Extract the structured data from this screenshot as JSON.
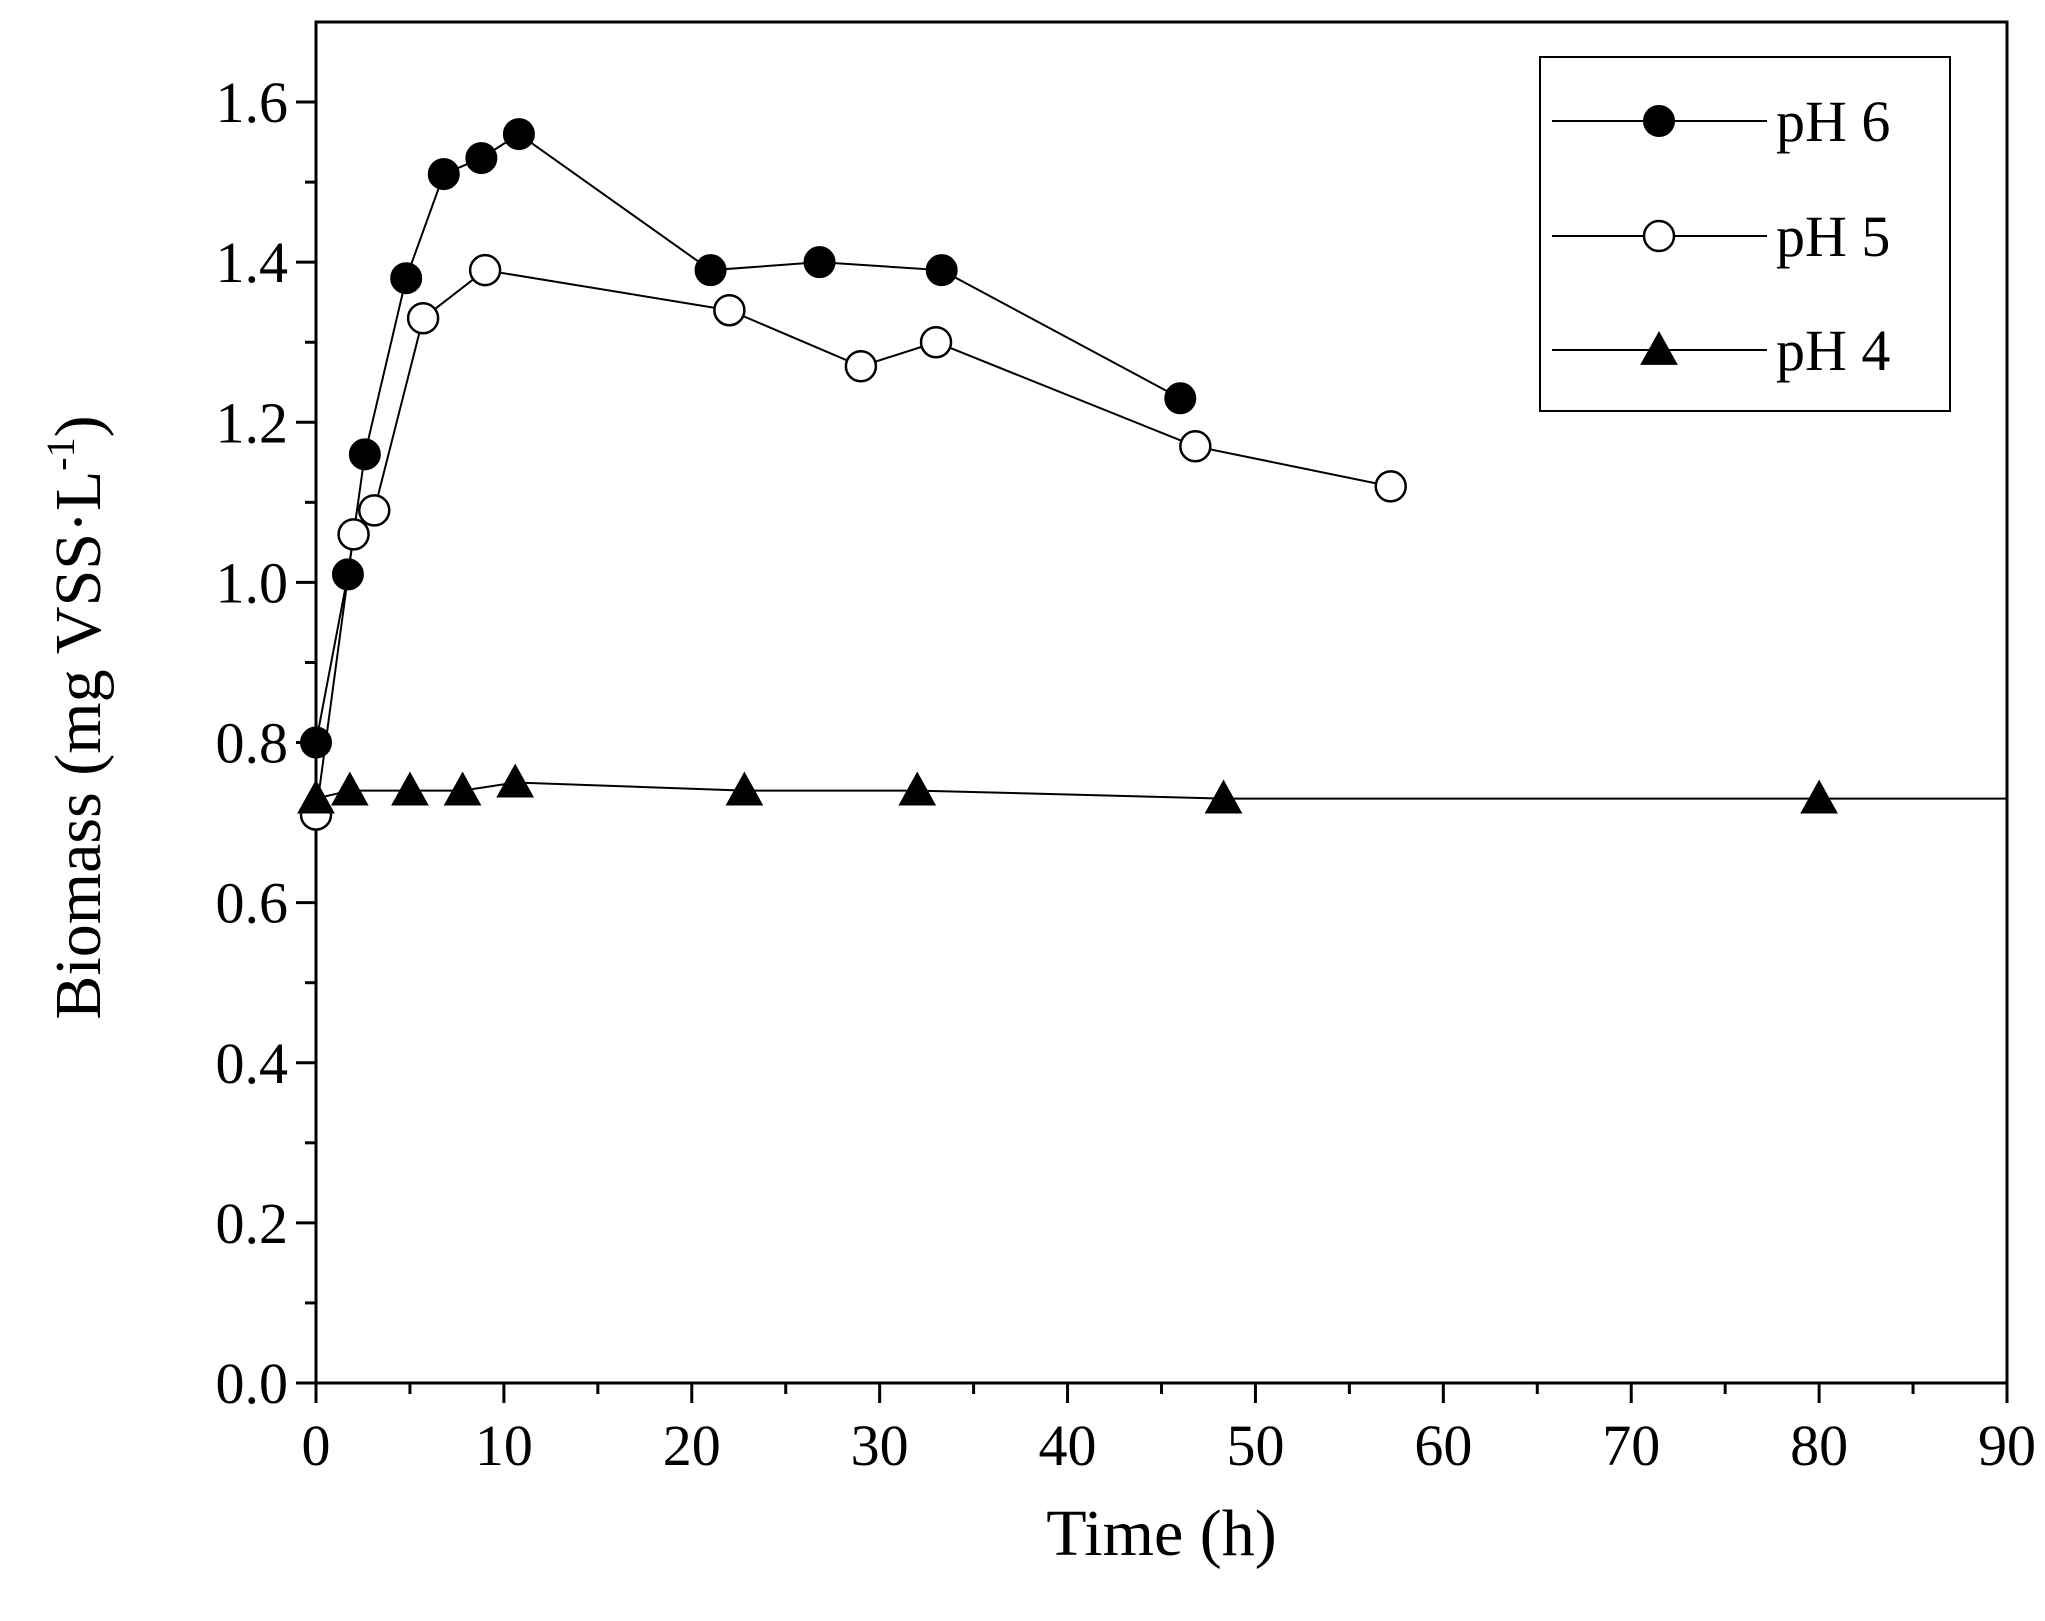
{
  "chart_data": {
    "type": "line",
    "title": "",
    "xlabel": "Time (h)",
    "ylabel_main": "Biomass (mg VSS·L",
    "ylabel_sup": "-1",
    "ylabel_close": ")",
    "xlim": [
      0,
      90
    ],
    "ylim": [
      0,
      1.7
    ],
    "xticks": [
      0,
      10,
      20,
      30,
      40,
      50,
      60,
      70,
      80,
      90
    ],
    "xtick_labels": [
      "0",
      "10",
      "20",
      "30",
      "40",
      "50",
      "60",
      "70",
      "80",
      "90"
    ],
    "yticks": [
      0.0,
      0.2,
      0.4,
      0.6,
      0.8,
      1.0,
      1.2,
      1.4,
      1.6
    ],
    "ytick_labels": [
      "0.0",
      "0.2",
      "0.4",
      "0.6",
      "0.8",
      "1.0",
      "1.2",
      "1.4",
      "1.6"
    ],
    "grid": false,
    "legend_position": "top-right",
    "series": [
      {
        "name": "pH 6",
        "marker": "filled-circle",
        "color": "#000000",
        "x": [
          0,
          1.7,
          2.6,
          4.8,
          6.8,
          8.8,
          10.8,
          21,
          26.8,
          33.3,
          46
        ],
        "y": [
          0.8,
          1.01,
          1.16,
          1.38,
          1.51,
          1.53,
          1.56,
          1.39,
          1.4,
          1.39,
          1.23
        ]
      },
      {
        "name": "pH 5",
        "marker": "open-circle",
        "color": "#000000",
        "x": [
          0,
          2,
          3.1,
          5.7,
          9,
          22,
          29,
          33,
          46.8,
          57.2
        ],
        "y": [
          0.71,
          1.06,
          1.09,
          1.33,
          1.39,
          1.34,
          1.27,
          1.3,
          1.17,
          1.12
        ]
      },
      {
        "name": "pH 4",
        "marker": "filled-triangle",
        "color": "#000000",
        "x": [
          0,
          1.8,
          5,
          7.8,
          10.6,
          22.8,
          32,
          48.3,
          80
        ],
        "y": [
          0.73,
          0.74,
          0.74,
          0.74,
          0.75,
          0.74,
          0.74,
          0.73,
          0.73
        ],
        "extend_line_to_x": 90
      }
    ]
  }
}
